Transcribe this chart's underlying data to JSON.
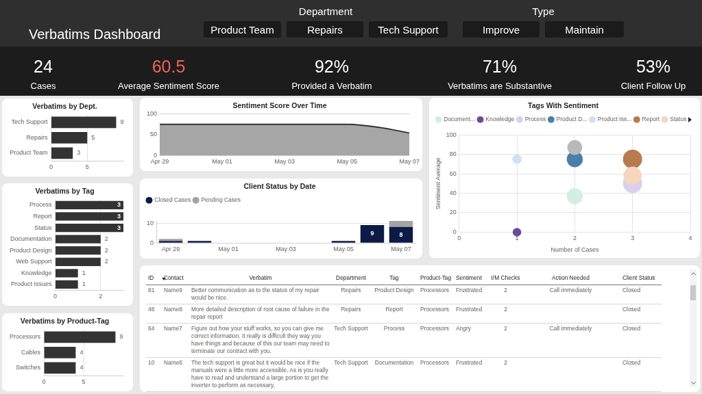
{
  "chart_data": [
    {
      "type": "other",
      "title": "Verbatims Dashboard"
    },
    {
      "type": "other",
      "title": "Department",
      "categories": [
        "Product Team",
        "Repairs",
        "Tech Support"
      ]
    },
    {
      "type": "other",
      "title": "Type",
      "categories": [
        "Improve",
        "Maintain"
      ]
    },
    {
      "type": "other",
      "categories": [
        "Cases",
        "Average Sentiment Score",
        "Provided a Verbatim",
        "Verbatims are Substantive",
        "Client Follow Up"
      ],
      "value_labels": [
        "24",
        "60.5",
        "92%",
        "71%",
        "53%"
      ]
    },
    {
      "type": "bar",
      "title": "Verbatims by Dept.",
      "orientation": "horizontal",
      "categories": [
        "Tech Support",
        "Repairs",
        "Product Team"
      ],
      "values": [
        9,
        5,
        3
      ],
      "color": "#333333",
      "xlim": [
        0,
        10
      ],
      "xticks": [
        0,
        5
      ],
      "grid": "x",
      "data_labels": true
    },
    {
      "type": "bar",
      "title": "Verbatims by Tag",
      "orientation": "horizontal",
      "categories": [
        "Process",
        "Report",
        "Status",
        "Documentation",
        "Product Design",
        "Web Support",
        "Knowledge",
        "Product Issues"
      ],
      "values": [
        3,
        3,
        3,
        2,
        2,
        2,
        1,
        1
      ],
      "color": "#333333",
      "xlim": [
        0,
        3
      ],
      "xticks": [
        0,
        2
      ],
      "grid": "x",
      "data_labels": true
    },
    {
      "type": "bar",
      "title": "Verbatims by Product-Tag",
      "orientation": "horizontal",
      "categories": [
        "Processors",
        "Cables",
        "Switches"
      ],
      "values": [
        9,
        4,
        4
      ],
      "color": "#333333",
      "xlim": [
        0,
        10
      ],
      "xticks": [
        0,
        5
      ],
      "grid": "x",
      "data_labels": true
    },
    {
      "type": "area",
      "title": "Sentiment Score Over Time",
      "x": [
        "--04-29",
        "--04-30",
        "--05-05",
        "--05-06",
        "--05-07"
      ],
      "values": [
        75,
        75,
        75,
        68,
        54
      ],
      "color": "#a6a6a6",
      "xlim": [
        "--04-29",
        "--05-07"
      ],
      "xticks": [
        {
          "value": "--04-29",
          "label": "Apr 29"
        },
        {
          "value": "--05-01",
          "label": "May 01"
        },
        {
          "value": "--05-03",
          "label": "May 03"
        },
        {
          "value": "--05-05",
          "label": "May 05"
        },
        {
          "value": "--05-07",
          "label": "May 07"
        }
      ],
      "ylim": [
        0,
        100
      ],
      "yticks": [
        0,
        50,
        100
      ],
      "grid": "y"
    },
    {
      "type": "bar",
      "title": "Client Status by Date",
      "stacked": true,
      "x": [
        "--04-29",
        "--04-30",
        "--05-05",
        "--05-06",
        "--05-07"
      ],
      "series": [
        {
          "name": "Closed Cases",
          "color": "#0c1a47",
          "values": [
            1,
            1,
            1,
            9,
            8
          ],
          "value_labels": [
            null,
            null,
            null,
            "9",
            "8"
          ]
        },
        {
          "name": "Pending Cases",
          "color": "#a3a3a3",
          "values": [
            1,
            null,
            null,
            null,
            3
          ]
        }
      ],
      "xlim": [
        "--04-28T12:00",
        "--05-07T12:00"
      ],
      "xticks": [
        {
          "value": "--04-29",
          "label": "Apr 29"
        },
        {
          "value": "--05-01",
          "label": "May 01"
        },
        {
          "value": "--05-03",
          "label": "May 03"
        },
        {
          "value": "--05-05",
          "label": "May 05"
        },
        {
          "value": "--05-07",
          "label": "May 07"
        }
      ],
      "ylim": [
        0,
        11
      ],
      "yticks": [
        0,
        10
      ],
      "grid": "y",
      "legend": "top left"
    },
    {
      "type": "bubble",
      "title": "Tags With Sentiment",
      "series": [
        {
          "name": "Document...",
          "color": "#d1efe2",
          "x": [
            2
          ],
          "values": [
            37
          ],
          "sizes": [
            0.7
          ]
        },
        {
          "name": "Knowledge",
          "color": "#6a4c9c",
          "x": [
            1
          ],
          "values": [
            0
          ],
          "sizes": [
            0.2
          ]
        },
        {
          "name": "Process",
          "color": "#d9cff1",
          "x": [
            3
          ],
          "values": [
            50
          ],
          "sizes": [
            1
          ]
        },
        {
          "name": "Product D...",
          "color": "#4b7ea9",
          "x": [
            2
          ],
          "values": [
            75
          ],
          "sizes": [
            0.7
          ]
        },
        {
          "name": "Product Iss...",
          "color": "#cfe2f3",
          "x": [
            1
          ],
          "values": [
            75
          ],
          "sizes": [
            0.25
          ]
        },
        {
          "name": "Report",
          "color": "#b87b4f",
          "x": [
            3
          ],
          "values": [
            75
          ],
          "sizes": [
            1
          ]
        },
        {
          "name": "Status",
          "color": "#f7d6bf",
          "x": [
            3
          ],
          "values": [
            58
          ],
          "sizes": [
            0.9
          ]
        },
        {
          "color": "#b9b9b9",
          "x": [
            2
          ],
          "values": [
            87
          ],
          "sizes": [
            0.6
          ]
        }
      ],
      "xlim": [
        0,
        4
      ],
      "xticks": [
        0,
        1,
        2,
        3,
        4
      ],
      "ylim": [
        0,
        100
      ],
      "yticks": [
        0,
        20,
        40,
        60,
        80,
        100
      ],
      "xlabel": "Number of Cases",
      "ylabel": "Sentiment Average",
      "grid": true,
      "legend": "top left"
    },
    {
      "type": "other",
      "categories": [
        "ID",
        "Contact",
        "Verbatim",
        "Department",
        "Tag",
        "Product-Tag",
        "Sentiment",
        "I/M Checks",
        "Action Needed",
        "Client Status"
      ],
      "cell_labels": [
        [
          "81",
          "Name9",
          "Better communication as to the status of my repair would be nice.",
          "Repairs",
          "Product Design",
          "Processors",
          "Frustrated",
          "2",
          "Call immediately",
          "Closed"
        ],
        [
          "48",
          "Name8",
          "More detailed description of root cause of failure in the repair report",
          "Repairs",
          "Report",
          "Processors",
          "Frustrated",
          "2",
          null,
          "Closed"
        ],
        [
          "64",
          "Name7",
          "Figure out how your stuff works, so you can give me correct information. It really is difficult they way you have things and because of this our team may need to terminate our contract with you.",
          "Tech Support",
          "Process",
          "Processors",
          "Angry",
          "2",
          "Call immediately",
          "Closed"
        ],
        [
          "10",
          "Name6",
          "The tech support is great but it would be nice if the manuals were a little more accessible. As is you really have to read and understand a large portion to get the inverter to perform as necessary,",
          "Tech Support",
          "Documentation",
          "Processors",
          "Frustrated",
          "2",
          null,
          "Closed"
        ]
      ]
    }
  ]
}
